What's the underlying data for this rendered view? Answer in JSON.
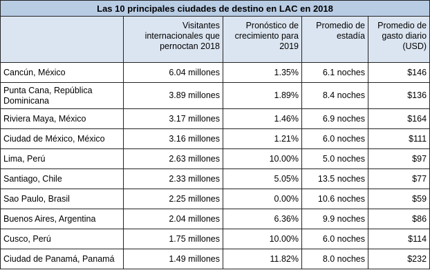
{
  "table": {
    "title": "Las 10 principales ciudades de destino en LAC en 2018",
    "headers": [
      "",
      "Visitantes internacionales que pernoctan 2018",
      "Pronóstico de crecimiento para 2019",
      "Promedio de estadía",
      "Promedio de gasto diario (USD)"
    ],
    "rows": [
      [
        "Cancún, México",
        "6.04 millones",
        "1.35%",
        "6.1 noches",
        "$146"
      ],
      [
        "Punta Cana, República Dominicana",
        "3.89 millones",
        "1.89%",
        "8.4 noches",
        "$136"
      ],
      [
        "Riviera Maya, México",
        "3.17 millones",
        "1.46%",
        "6.9 noches",
        "$164"
      ],
      [
        "Ciudad de México, México",
        "3.16 millones",
        "1.21%",
        "6.0 noches",
        "$111"
      ],
      [
        "Lima, Perú",
        "2.63 millones",
        "10.00%",
        "5.0 noches",
        "$97"
      ],
      [
        "Santiago, Chile",
        "2.33 millones",
        "5.05%",
        "13.5 noches",
        "$77"
      ],
      [
        "Sao Paulo, Brasil",
        "2.25 millones",
        "0.00%",
        "10.6 noches",
        "$59"
      ],
      [
        "Buenos Aires, Argentina",
        "2.04 millones",
        "6.36%",
        "9.9 noches",
        "$86"
      ],
      [
        "Cusco, Perú",
        "1.75 millones",
        "10.00%",
        "6.0 noches",
        "$114"
      ],
      [
        "Ciudad de Panamá, Panamá",
        "1.49 millones",
        "11.82%",
        "8.0 noches",
        "$232"
      ]
    ]
  }
}
